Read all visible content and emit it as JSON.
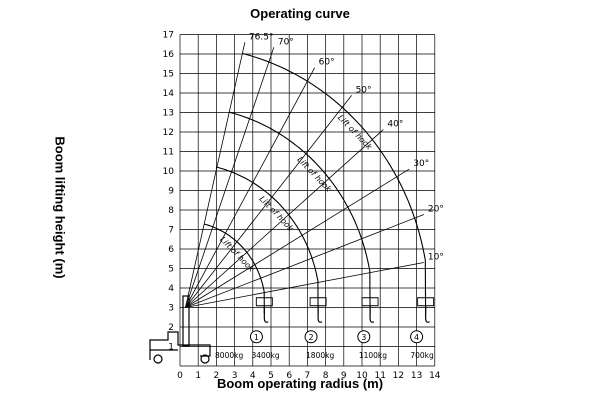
{
  "title": "Operating curve",
  "x_axis_label": "Boom operating radius (m)",
  "y_axis_label": "Boom lifting height (m)",
  "x_ticks": [
    "0",
    "1",
    "2",
    "3",
    "4",
    "5",
    "6",
    "7",
    "8",
    "9",
    "10",
    "11",
    "12",
    "13",
    "14"
  ],
  "y_ticks": [
    "1",
    "2",
    "3",
    "4",
    "5",
    "6",
    "7",
    "8",
    "9",
    "10",
    "11",
    "12",
    "13",
    "14",
    "15",
    "16",
    "17"
  ],
  "boom_angles": [
    {
      "label": "76.5°",
      "deg": 76.5
    },
    {
      "label": "70°",
      "deg": 70
    },
    {
      "label": "60°",
      "deg": 60
    },
    {
      "label": "50°",
      "deg": 50
    },
    {
      "label": "40°",
      "deg": 40
    },
    {
      "label": "30°",
      "deg": 30
    },
    {
      "label": "20°",
      "deg": 20
    },
    {
      "label": "10°",
      "deg": 10
    }
  ],
  "curve_label": "Lift of hook",
  "boom_sections": [
    {
      "number": "1",
      "radius_m": 4.2
    },
    {
      "number": "2",
      "radius_m": 7.2
    },
    {
      "number": "3",
      "radius_m": 10.1
    },
    {
      "number": "4",
      "radius_m": 13.0
    }
  ],
  "load_labels": [
    {
      "text": "8000kg",
      "x_m": 2.7
    },
    {
      "text": "3400kg",
      "x_m": 4.7
    },
    {
      "text": "1800kg",
      "x_m": 7.7
    },
    {
      "text": "1100kg",
      "x_m": 10.6
    },
    {
      "text": "700kg",
      "x_m": 13.3
    }
  ],
  "colors": {
    "line": "#000000",
    "background": "#ffffff"
  }
}
